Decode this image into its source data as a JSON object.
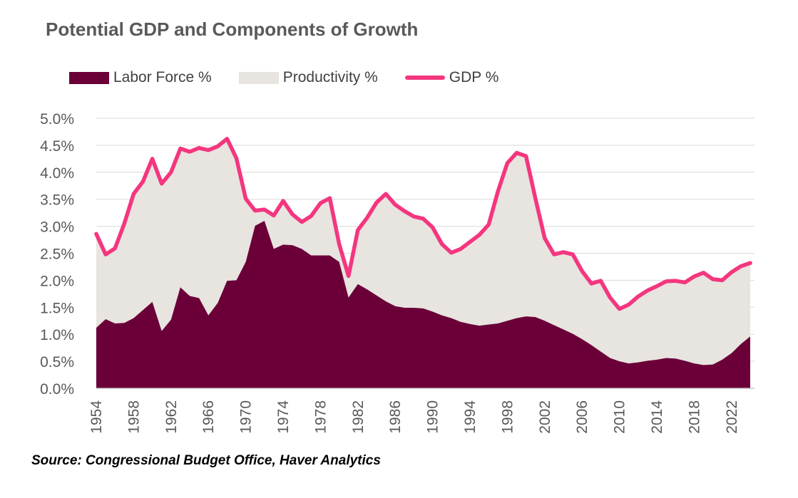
{
  "chart_data": {
    "type": "area",
    "title": "Potential GDP and Components of Growth",
    "source": "Source: Congressional Budget Office, Haver Analytics",
    "xlabel": "",
    "ylabel": "",
    "x_range": [
      1954,
      2024
    ],
    "ylim": [
      0,
      5
    ],
    "y_ticks": [
      0,
      0.5,
      1,
      1.5,
      2,
      2.5,
      3,
      3.5,
      4,
      4.5,
      5
    ],
    "y_tick_labels": [
      "0.0%",
      "0.5%",
      "1.0%",
      "1.5%",
      "2.0%",
      "2.5%",
      "3.0%",
      "3.5%",
      "4.0%",
      "4.5%",
      "5.0%"
    ],
    "x_ticks": [
      1954,
      1958,
      1962,
      1966,
      1970,
      1974,
      1978,
      1982,
      1986,
      1990,
      1994,
      1998,
      2002,
      2006,
      2010,
      2014,
      2018,
      2022
    ],
    "x_tick_labels": [
      "1954",
      "1958",
      "1962",
      "1966",
      "1970",
      "1974",
      "1978",
      "1982",
      "1986",
      "1990",
      "1994",
      "1998",
      "2002",
      "2006",
      "2010",
      "2014",
      "2018",
      "2022"
    ],
    "grid": true,
    "legend_position": "top-left",
    "legend": [
      "Labor Force %",
      "Productivity %",
      "GDP %"
    ],
    "colors": {
      "labor": "#6b0039",
      "productivity": "#e8e4df",
      "gdp": "#f4367f",
      "grid": "#d9d9d9",
      "axis": "#bfbfbf",
      "tick_text": "#595959"
    },
    "x": [
      1954,
      1955,
      1956,
      1957,
      1958,
      1959,
      1960,
      1961,
      1962,
      1963,
      1964,
      1965,
      1966,
      1967,
      1968,
      1969,
      1970,
      1971,
      1972,
      1973,
      1974,
      1975,
      1976,
      1977,
      1978,
      1979,
      1980,
      1981,
      1982,
      1983,
      1984,
      1985,
      1986,
      1987,
      1988,
      1989,
      1990,
      1991,
      1992,
      1993,
      1994,
      1995,
      1996,
      1997,
      1998,
      1999,
      2000,
      2001,
      2002,
      2003,
      2004,
      2005,
      2006,
      2007,
      2008,
      2009,
      2010,
      2011,
      2012,
      2013,
      2014,
      2015,
      2016,
      2017,
      2018,
      2019,
      2020,
      2021,
      2022,
      2023,
      2024
    ],
    "series": [
      {
        "name": "Labor Force %",
        "values": [
          1.12,
          1.28,
          1.2,
          1.21,
          1.3,
          1.45,
          1.6,
          1.06,
          1.27,
          1.87,
          1.71,
          1.67,
          1.35,
          1.58,
          1.99,
          2.0,
          2.34,
          3.01,
          3.1,
          2.58,
          2.66,
          2.65,
          2.58,
          2.46,
          2.46,
          2.46,
          2.34,
          1.68,
          1.93,
          1.83,
          1.72,
          1.61,
          1.52,
          1.49,
          1.49,
          1.48,
          1.42,
          1.35,
          1.3,
          1.23,
          1.19,
          1.16,
          1.18,
          1.2,
          1.25,
          1.3,
          1.33,
          1.32,
          1.25,
          1.17,
          1.09,
          1.01,
          0.91,
          0.8,
          0.68,
          0.56,
          0.5,
          0.46,
          0.48,
          0.51,
          0.53,
          0.56,
          0.55,
          0.51,
          0.46,
          0.43,
          0.44,
          0.53,
          0.65,
          0.82,
          0.96
        ]
      },
      {
        "name": "Productivity %",
        "values": [
          1.74,
          1.2,
          1.39,
          1.84,
          2.3,
          2.38,
          2.65,
          2.73,
          2.73,
          2.57,
          2.67,
          2.78,
          3.06,
          2.9,
          2.63,
          2.26,
          1.17,
          0.28,
          0.21,
          0.62,
          0.81,
          0.57,
          0.5,
          0.73,
          0.97,
          1.06,
          0.33,
          0.4,
          1.0,
          1.33,
          1.72,
          1.99,
          1.88,
          1.79,
          1.69,
          1.66,
          1.56,
          1.32,
          1.21,
          1.35,
          1.52,
          1.68,
          1.85,
          2.45,
          2.92,
          3.06,
          2.97,
          2.2,
          1.53,
          1.31,
          1.43,
          1.47,
          1.26,
          1.14,
          1.31,
          1.12,
          0.97,
          1.09,
          1.22,
          1.3,
          1.36,
          1.42,
          1.44,
          1.45,
          1.61,
          1.71,
          1.58,
          1.47,
          1.5,
          1.44,
          1.36
        ]
      },
      {
        "name": "GDP %",
        "values": [
          2.86,
          2.48,
          2.59,
          3.05,
          3.6,
          3.83,
          4.25,
          3.79,
          4.0,
          4.44,
          4.38,
          4.45,
          4.41,
          4.48,
          4.62,
          4.26,
          3.51,
          3.29,
          3.31,
          3.2,
          3.47,
          3.22,
          3.08,
          3.19,
          3.43,
          3.52,
          2.67,
          2.08,
          2.93,
          3.16,
          3.44,
          3.6,
          3.4,
          3.28,
          3.18,
          3.14,
          2.98,
          2.67,
          2.51,
          2.58,
          2.71,
          2.84,
          3.03,
          3.65,
          4.17,
          4.36,
          4.3,
          3.52,
          2.78,
          2.48,
          2.52,
          2.48,
          2.17,
          1.94,
          1.99,
          1.68,
          1.47,
          1.55,
          1.7,
          1.81,
          1.89,
          1.98,
          1.99,
          1.96,
          2.07,
          2.14,
          2.02,
          2.0,
          2.15,
          2.26,
          2.32
        ]
      }
    ]
  }
}
